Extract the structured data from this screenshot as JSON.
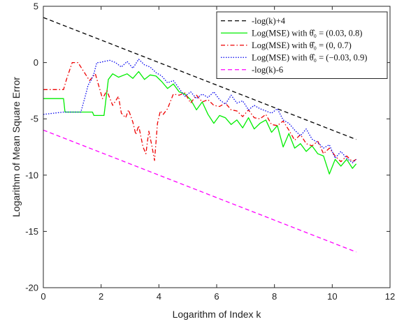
{
  "chart_data": {
    "type": "line",
    "title": "",
    "xlabel": "Logarithm of Index k",
    "ylabel": "Logarithm of Mean Square Error",
    "xlim": [
      0,
      12
    ],
    "ylim": [
      -20,
      5
    ],
    "xticks": [
      0,
      2,
      4,
      6,
      8,
      10,
      12
    ],
    "yticks": [
      5,
      0,
      -5,
      -10,
      -15,
      -20
    ],
    "grid": false,
    "legend_position": "top-right",
    "series": [
      {
        "name": "-log(k)+4",
        "color": "#000000",
        "dash": "dashed",
        "x": [
          0,
          10.83
        ],
        "y": [
          4.0,
          -6.83
        ]
      },
      {
        "name": "Log(MSE) with θ̂₀ = (0.03, 0.8)",
        "color": "#00ee00",
        "dash": "solid",
        "x": [
          0,
          0.7,
          0.75,
          1.7,
          1.75,
          2.1,
          2.25,
          2.4,
          2.6,
          2.9,
          3.1,
          3.3,
          3.5,
          3.7,
          3.9,
          4.1,
          4.3,
          4.5,
          4.7,
          4.9,
          5.1,
          5.3,
          5.5,
          5.7,
          5.9,
          6.1,
          6.3,
          6.5,
          6.7,
          6.9,
          7.1,
          7.3,
          7.5,
          7.7,
          7.9,
          8.1,
          8.3,
          8.5,
          8.7,
          8.9,
          9.1,
          9.3,
          9.5,
          9.7,
          9.9,
          10.1,
          10.3,
          10.5,
          10.7,
          10.83
        ],
        "y": [
          -3.2,
          -3.2,
          -4.4,
          -4.4,
          -4.7,
          -4.7,
          -1.5,
          -1.0,
          -1.3,
          -1.0,
          -1.4,
          -0.8,
          -1.5,
          -1.1,
          -1.2,
          -1.7,
          -2.3,
          -1.9,
          -2.6,
          -2.8,
          -3.3,
          -4.2,
          -3.5,
          -4.6,
          -5.4,
          -4.7,
          -4.9,
          -5.5,
          -5.1,
          -5.8,
          -4.9,
          -5.9,
          -5.4,
          -5.1,
          -6.2,
          -5.6,
          -7.5,
          -6.3,
          -7.6,
          -7.2,
          -7.9,
          -7.4,
          -8.1,
          -8.3,
          -9.9,
          -8.6,
          -9.2,
          -8.6,
          -9.4,
          -9.0
        ]
      },
      {
        "name": "Log(MSE) with θ̂₀ = (0, 0.7)",
        "color": "#ee0000",
        "dash": "dashdot",
        "x": [
          0,
          0.7,
          0.8,
          1.0,
          1.2,
          1.45,
          1.6,
          1.8,
          1.9,
          2.05,
          2.2,
          2.4,
          2.6,
          2.7,
          2.85,
          2.95,
          3.1,
          3.2,
          3.3,
          3.45,
          3.55,
          3.65,
          3.75,
          3.85,
          3.95,
          4.05,
          4.15,
          4.3,
          4.5,
          4.7,
          4.9,
          5.1,
          5.3,
          5.5,
          5.7,
          5.9,
          6.1,
          6.3,
          6.5,
          6.7,
          6.9,
          7.1,
          7.3,
          7.5,
          7.7,
          7.9,
          8.1,
          8.3,
          8.5,
          8.7,
          8.9,
          9.1,
          9.3,
          9.5,
          9.7,
          9.9,
          10.1,
          10.3,
          10.5,
          10.7,
          10.83
        ],
        "y": [
          -2.4,
          -2.4,
          -1.5,
          0.0,
          0.0,
          -1.0,
          -1.6,
          -1.0,
          -1.9,
          -3.2,
          -2.5,
          -3.8,
          -3.0,
          -4.5,
          -4.9,
          -4.2,
          -5.3,
          -6.4,
          -5.6,
          -7.5,
          -8.1,
          -6.1,
          -7.3,
          -8.7,
          -5.4,
          -4.3,
          -4.6,
          -4.1,
          -2.8,
          -2.9,
          -2.7,
          -3.6,
          -2.9,
          -3.5,
          -3.3,
          -3.8,
          -3.9,
          -3.6,
          -4.2,
          -4.3,
          -4.8,
          -4.2,
          -4.9,
          -5.0,
          -4.6,
          -5.5,
          -5.6,
          -5.2,
          -6.0,
          -6.9,
          -6.4,
          -7.2,
          -7.4,
          -7.0,
          -8.1,
          -7.6,
          -8.3,
          -8.8,
          -8.3,
          -8.8,
          -8.6
        ]
      },
      {
        "name": "Log(MSE) with θ̂₀ = (−0.03, 0.9)",
        "color": "#0000ee",
        "dash": "dotted",
        "x": [
          0,
          0.7,
          1.3,
          1.45,
          1.55,
          1.65,
          1.75,
          1.85,
          1.95,
          2.1,
          2.3,
          2.5,
          2.7,
          2.9,
          3.1,
          3.3,
          3.5,
          3.7,
          3.9,
          4.1,
          4.3,
          4.5,
          4.7,
          4.9,
          5.1,
          5.3,
          5.5,
          5.7,
          5.9,
          6.1,
          6.3,
          6.5,
          6.7,
          6.9,
          7.1,
          7.3,
          7.5,
          7.7,
          7.9,
          8.1,
          8.3,
          8.5,
          8.7,
          8.9,
          9.1,
          9.3,
          9.5,
          9.7,
          9.9,
          10.1,
          10.3,
          10.5,
          10.7,
          10.83
        ],
        "y": [
          -4.6,
          -4.4,
          -4.4,
          -3.0,
          -2.0,
          -1.6,
          -1.0,
          0.0,
          0.0,
          0.1,
          0.2,
          0.0,
          -0.4,
          0.1,
          -0.5,
          0.3,
          -0.2,
          -0.4,
          -0.9,
          -1.2,
          -1.8,
          -1.6,
          -2.3,
          -3.0,
          -2.6,
          -3.2,
          -2.8,
          -3.1,
          -2.6,
          -3.3,
          -3.7,
          -2.9,
          -3.6,
          -3.4,
          -4.2,
          -3.8,
          -4.1,
          -4.3,
          -4.5,
          -4.1,
          -5.1,
          -5.4,
          -6.0,
          -6.5,
          -5.9,
          -6.8,
          -7.1,
          -7.6,
          -7.3,
          -8.5,
          -7.9,
          -8.5,
          -8.9,
          -8.6
        ]
      },
      {
        "name": "-log(k)-6",
        "color": "#ff00ff",
        "dash": "dashed",
        "x": [
          0,
          10.83
        ],
        "y": [
          -6.0,
          -16.83
        ]
      }
    ]
  }
}
